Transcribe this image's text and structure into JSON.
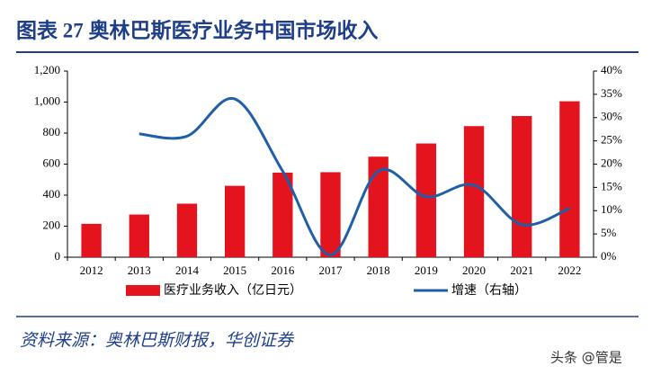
{
  "chart_data": {
    "type": "bar-line",
    "title": "图表 27 奥林巴斯医疗业务中国市场收入",
    "source": "资料来源：奥林巴斯财报，华创证券",
    "watermark": "头条 @管是",
    "categories": [
      "2012",
      "2013",
      "2014",
      "2015",
      "2016",
      "2017",
      "2018",
      "2019",
      "2020",
      "2021",
      "2022"
    ],
    "series": [
      {
        "name": "医疗业务收入（亿日元）",
        "type": "bar",
        "color": "#e3141d",
        "values": [
          215,
          275,
          345,
          460,
          545,
          548,
          648,
          733,
          845,
          910,
          1005
        ]
      },
      {
        "name": "增速（右轴）",
        "type": "line",
        "axis": "y2",
        "color": "#1f5fa8",
        "values": [
          null,
          26.5,
          26,
          34,
          18.5,
          0.5,
          18.5,
          13,
          15.5,
          7,
          10.5
        ]
      }
    ],
    "ylim": [
      0,
      1200
    ],
    "yticks": [
      0,
      200,
      400,
      600,
      800,
      {
        "value": 1000,
        "label": "1,000"
      },
      {
        "value": 1200,
        "label": "1,200"
      }
    ],
    "y2lim": [
      0,
      40
    ],
    "y2ticks": [
      {
        "value": 0,
        "label": "0%"
      },
      {
        "value": 5,
        "label": "5%"
      },
      {
        "value": 10,
        "label": "10%"
      },
      {
        "value": 15,
        "label": "15%"
      },
      {
        "value": 20,
        "label": "20%"
      },
      {
        "value": 25,
        "label": "25%"
      },
      {
        "value": 30,
        "label": "30%"
      },
      {
        "value": 35,
        "label": "35%"
      },
      {
        "value": 40,
        "label": "40%"
      }
    ]
  }
}
